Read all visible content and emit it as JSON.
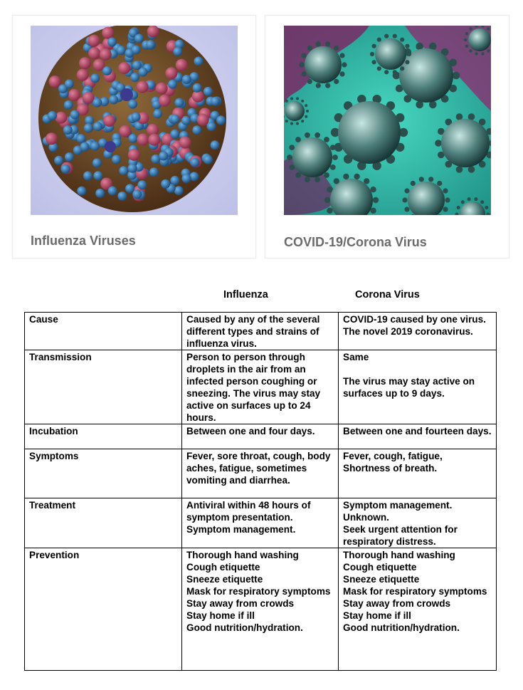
{
  "cards": [
    {
      "caption": "Influenza Viruses",
      "image": "influenza-virus-illustration"
    },
    {
      "caption": "COVID-19/Corona Virus",
      "image": "coronavirus-illustration"
    }
  ],
  "table": {
    "col_headers": [
      "Influenza",
      "Corona Virus"
    ],
    "rows": [
      {
        "label": "Cause",
        "influenza": "Caused by any of the several different types and strains of influenza virus.",
        "corona": "COVID-19 caused by one virus.  The novel 2019 coronavirus."
      },
      {
        "label": "Transmission",
        "influenza": "Person to person through droplets in the air from an infected person coughing or sneezing. The virus may stay active on surfaces up to 24 hours.",
        "corona": "Same\n\nThe virus may stay active on surfaces up to 9 days."
      },
      {
        "label": "Incubation",
        "influenza": "Between one and four days.",
        "corona": "Between one and fourteen days."
      },
      {
        "label": "Symptoms",
        "influenza": "Fever, sore throat, cough, body aches, fatigue, sometimes vomiting and diarrhea.",
        "corona": "Fever, cough, fatigue, Shortness of breath."
      },
      {
        "label": "Treatment",
        "influenza": "Antiviral within 48 hours of symptom presentation.\nSymptom management.",
        "corona": "Symptom management.\nUnknown.\nSeek urgent attention for respiratory distress."
      },
      {
        "label": "Prevention",
        "influenza": "Thorough hand washing\nCough etiquette\nSneeze etiquette\nMask for respiratory symptoms\nStay away from crowds\nStay home if ill\nGood nutrition/hydration.",
        "corona": "Thorough hand washing\nCough etiquette\nSneeze etiquette\nMask for respiratory symptoms\nStay away from crowds\nStay home if ill\nGood nutrition/hydration."
      }
    ]
  },
  "colors": {
    "caption": "#6b6b6b",
    "flu_spike_blue": "#2f6e9e",
    "flu_spike_red": "#b24a64",
    "covid_teal": "#3fd1b8"
  }
}
